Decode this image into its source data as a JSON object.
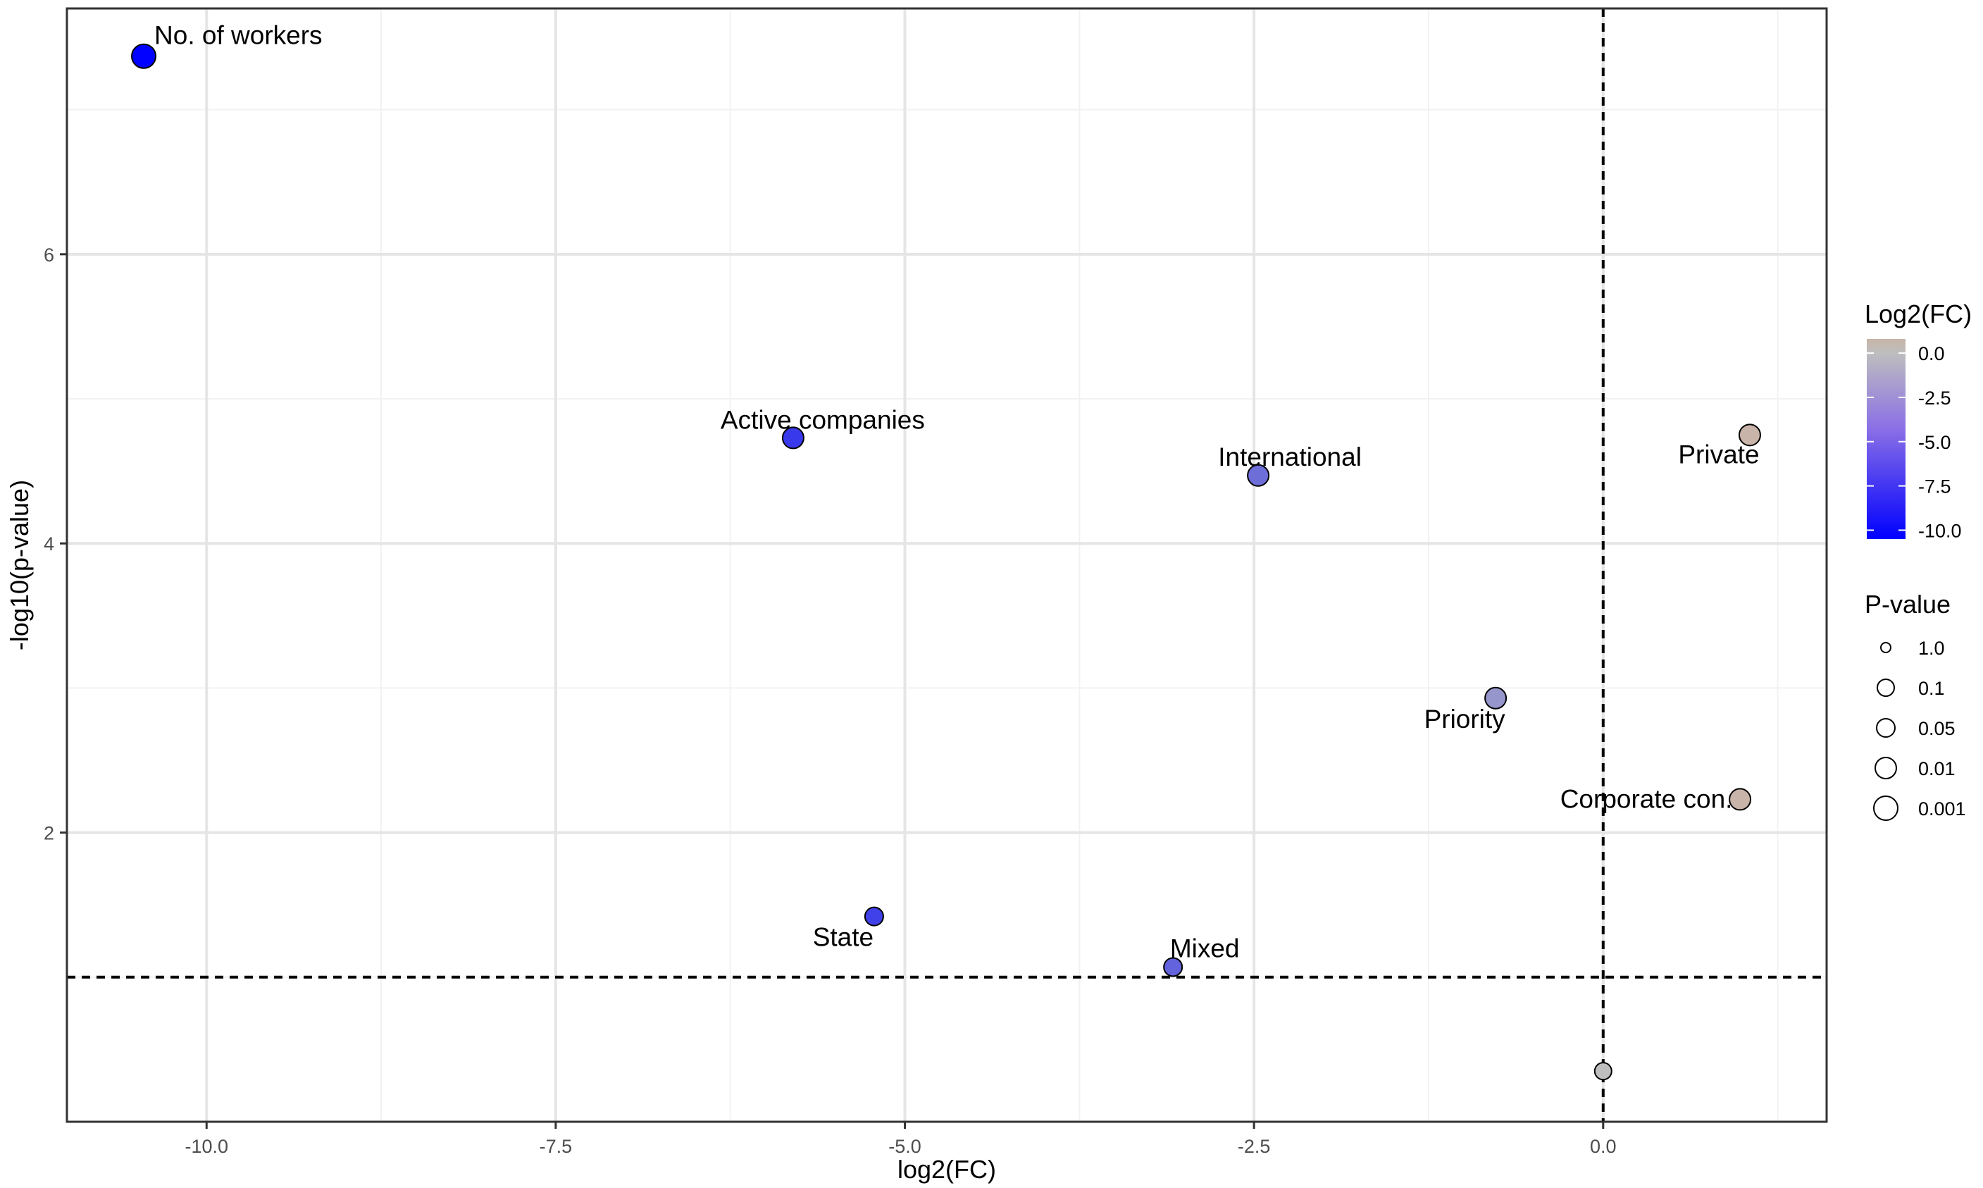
{
  "chart_data": {
    "type": "scatter",
    "title": "",
    "xlabel": "log2(FC)",
    "ylabel": "-log10(p-value)",
    "xlim": [
      -11.0,
      1.6
    ],
    "ylim": [
      0.0,
      7.7
    ],
    "x_ticks": [
      -10.0,
      -7.5,
      -5.0,
      -2.5,
      0.0
    ],
    "x_tick_labels": [
      "-10.0",
      "-7.5",
      "-5.0",
      "-2.5",
      "0.0"
    ],
    "y_ticks": [
      2,
      4,
      6
    ],
    "y_tick_labels": [
      "2",
      "4",
      "6"
    ],
    "grid": true,
    "reference_lines": {
      "vertical_x": 0.0,
      "horizontal_y": 1.0
    },
    "points": [
      {
        "label": "No. of workers",
        "x": -10.45,
        "y": 7.37,
        "p_value": 0.001
      },
      {
        "label": "Active companies",
        "x": -5.8,
        "y": 4.73,
        "p_value": 0.01
      },
      {
        "label": "International",
        "x": -2.47,
        "y": 4.47,
        "p_value": 0.01
      },
      {
        "label": "Private",
        "x": 1.05,
        "y": 4.75,
        "p_value": 0.01
      },
      {
        "label": "Priority",
        "x": -0.77,
        "y": 2.93,
        "p_value": 0.01
      },
      {
        "label": "Corporate con.",
        "x": 0.98,
        "y": 2.23,
        "p_value": 0.01
      },
      {
        "label": "State",
        "x": -5.22,
        "y": 1.42,
        "p_value": 0.05
      },
      {
        "label": "Mixed",
        "x": -3.08,
        "y": 1.07,
        "p_value": 0.05
      },
      {
        "label": "",
        "x": 0.0,
        "y": 0.35,
        "p_value": 0.1
      }
    ],
    "legend": {
      "placement": "right",
      "color": {
        "title": "Log2(FC)",
        "range": [
          -10.5,
          0.8
        ],
        "ticks": [
          0.0,
          -2.5,
          -5.0,
          -7.5,
          -10.0
        ],
        "tick_labels": [
          "0.0",
          "-2.5",
          "-5.0",
          "-7.5",
          "-10.0"
        ],
        "low_color": "#0000ff",
        "mid_color": "#bebebe",
        "high_color": "#c8b4a8"
      },
      "size": {
        "title": "P-value",
        "entries": [
          "1.0",
          "0.1",
          "0.05",
          "0.01",
          "0.001"
        ]
      }
    },
    "colors": {
      "point_stroke": "#000000",
      "grid_major": "#e5e5e5",
      "grid_minor": "#f2f2f2",
      "panel_border": "#333333"
    }
  }
}
